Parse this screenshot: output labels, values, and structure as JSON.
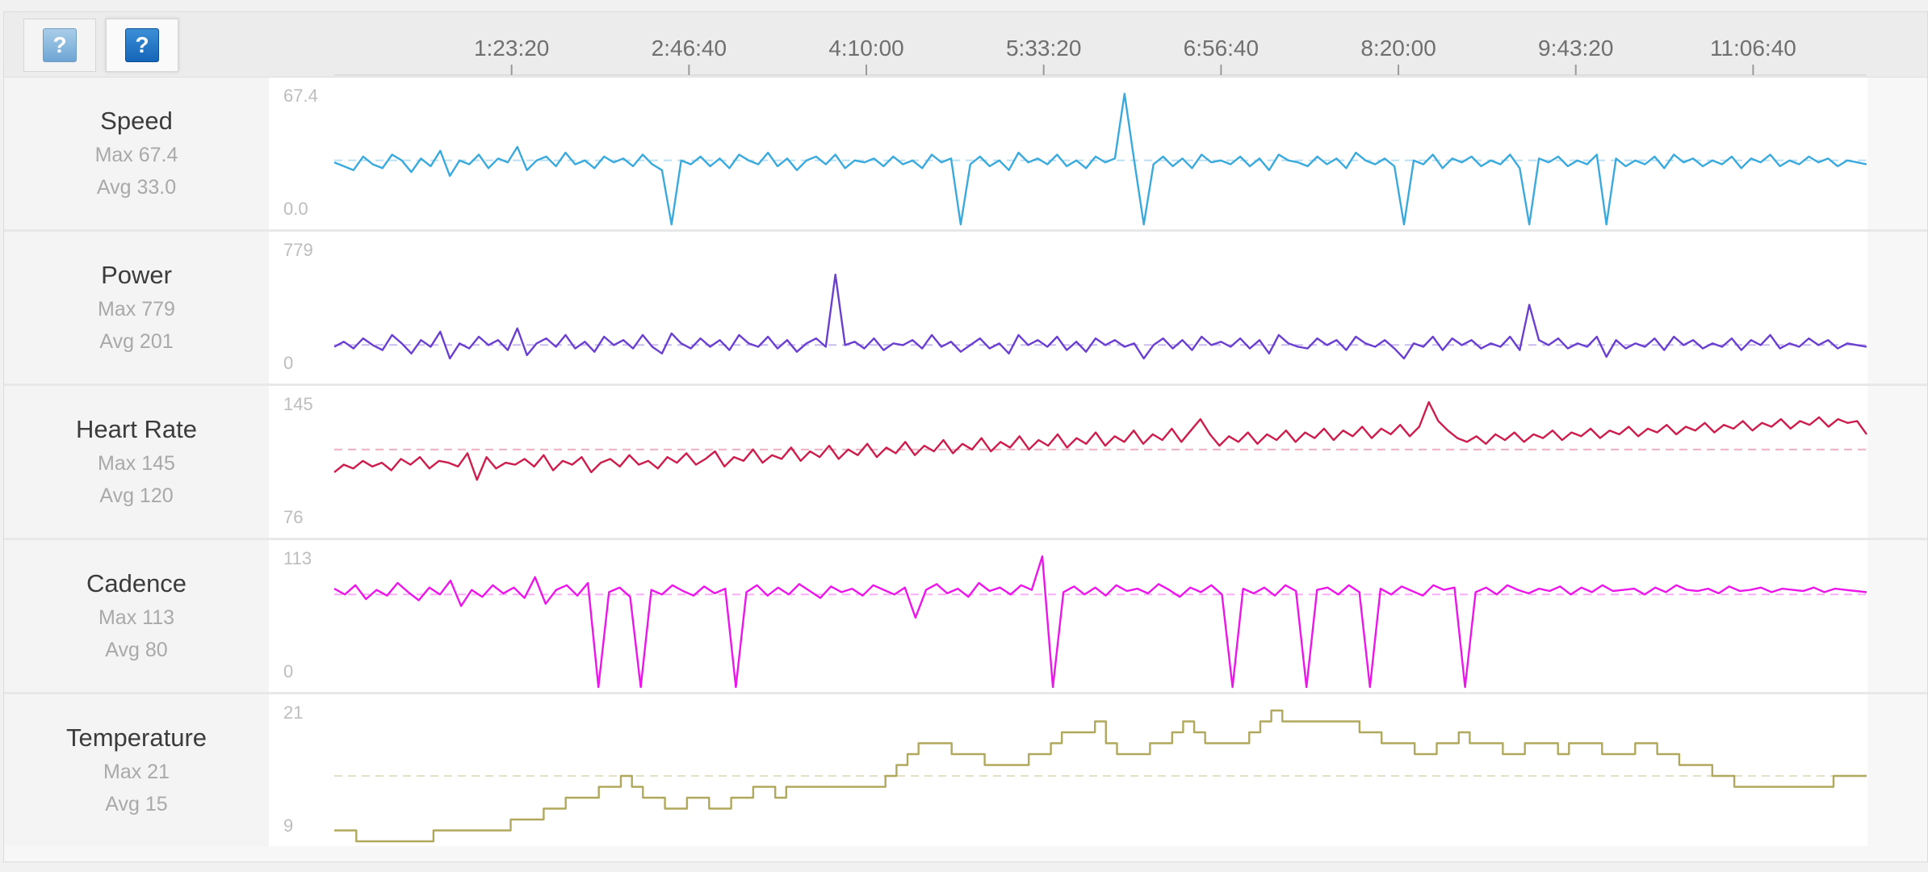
{
  "toolbar": {
    "buttons": [
      {
        "icon": "help-icon",
        "glyph": "?"
      },
      {
        "icon": "help-icon",
        "glyph": "?"
      }
    ]
  },
  "time_axis": {
    "ticks": [
      "1:23:20",
      "2:46:40",
      "4:10:00",
      "5:33:20",
      "6:56:40",
      "8:20:00",
      "9:43:20",
      "11:06:40"
    ]
  },
  "metrics": [
    {
      "title": "Speed",
      "max": "Max 67.4",
      "avg": "Avg 33.0",
      "y_top": "67.4",
      "y_bottom": "0.0"
    },
    {
      "title": "Power",
      "max": "Max 779",
      "avg": "Avg 201",
      "y_top": "779",
      "y_bottom": "0"
    },
    {
      "title": "Heart Rate",
      "max": "Max 145",
      "avg": "Avg 120",
      "y_top": "145",
      "y_bottom": "76"
    },
    {
      "title": "Cadence",
      "max": "Max 113",
      "avg": "Avg 80",
      "y_top": "113",
      "y_bottom": "0"
    },
    {
      "title": "Temperature",
      "max": "Max 21",
      "avg": "Avg 15",
      "y_top": "21",
      "y_bottom": "9"
    }
  ],
  "chart_data": {
    "type": "line",
    "x": {
      "unit": "elapsed time (h:mm:ss)",
      "tick_labels": [
        "1:23:20",
        "2:46:40",
        "4:10:00",
        "5:33:20",
        "6:56:40",
        "8:20:00",
        "9:43:20",
        "11:06:40"
      ],
      "tick_seconds": [
        5000,
        10000,
        15000,
        20000,
        25000,
        30000,
        35000,
        40000
      ],
      "xlim": [
        0,
        43200
      ]
    },
    "grid": false,
    "series": [
      {
        "name": "Speed",
        "color": "#3aa9dc",
        "ylim": [
          0,
          67.4
        ],
        "avg": 33.0,
        "max": 67.4,
        "values": [
          32,
          30,
          28,
          35,
          31,
          29,
          36,
          33,
          27,
          34,
          30,
          38,
          25,
          33,
          31,
          36,
          29,
          34,
          32,
          40,
          28,
          33,
          35,
          30,
          37,
          31,
          33,
          29,
          35,
          32,
          34,
          30,
          36,
          31,
          28,
          0,
          33,
          31,
          35,
          30,
          34,
          29,
          36,
          33,
          31,
          37,
          30,
          34,
          28,
          33,
          35,
          31,
          36,
          29,
          33,
          32,
          34,
          30,
          35,
          31,
          33,
          29,
          36,
          32,
          34,
          0,
          31,
          35,
          30,
          33,
          28,
          37,
          32,
          34,
          31,
          36,
          30,
          33,
          29,
          35,
          32,
          34,
          67.4,
          33,
          0,
          31,
          35,
          30,
          34,
          29,
          36,
          32,
          33,
          31,
          35,
          30,
          34,
          28,
          36,
          33,
          32,
          30,
          35,
          31,
          34,
          29,
          37,
          33,
          31,
          34,
          30,
          0,
          33,
          31,
          36,
          29,
          34,
          32,
          35,
          30,
          33,
          31,
          36,
          29,
          0,
          34,
          32,
          35,
          30,
          33,
          31,
          36,
          0,
          34,
          30,
          33,
          31,
          35,
          29,
          36,
          32,
          34,
          30,
          33,
          31,
          35,
          29,
          34,
          32,
          36,
          30,
          33,
          31,
          35,
          32,
          34,
          30,
          33,
          32,
          31
        ]
      },
      {
        "name": "Power",
        "color": "#6a3fd0",
        "ylim": [
          0,
          779
        ],
        "avg": 201,
        "max": 779,
        "values": [
          190,
          220,
          180,
          240,
          200,
          170,
          260,
          210,
          150,
          230,
          190,
          280,
          120,
          210,
          180,
          250,
          200,
          230,
          170,
          300,
          140,
          210,
          240,
          190,
          260,
          180,
          220,
          160,
          250,
          200,
          230,
          180,
          260,
          190,
          150,
          270,
          210,
          180,
          240,
          190,
          230,
          170,
          260,
          210,
          190,
          250,
          180,
          230,
          160,
          210,
          240,
          190,
          620,
          200,
          220,
          180,
          240,
          170,
          210,
          200,
          230,
          180,
          260,
          190,
          220,
          160,
          200,
          240,
          180,
          210,
          150,
          260,
          200,
          230,
          190,
          250,
          170,
          220,
          160,
          240,
          200,
          230,
          190,
          210,
          120,
          200,
          240,
          180,
          230,
          170,
          250,
          200,
          220,
          190,
          240,
          180,
          230,
          150,
          260,
          210,
          190,
          180,
          240,
          200,
          230,
          170,
          250,
          210,
          190,
          230,
          180,
          120,
          210,
          190,
          250,
          170,
          240,
          200,
          230,
          180,
          210,
          190,
          250,
          170,
          440,
          230,
          200,
          240,
          180,
          210,
          190,
          250,
          130,
          230,
          180,
          210,
          190,
          240,
          170,
          250,
          200,
          230,
          180,
          210,
          190,
          240,
          170,
          230,
          200,
          260,
          180,
          210,
          190,
          240,
          200,
          230,
          180,
          210,
          200,
          190
        ]
      },
      {
        "name": "Heart Rate",
        "color": "#cc1d4d",
        "ylim": [
          76,
          145
        ],
        "avg": 120,
        "max": 145,
        "values": [
          108,
          112,
          110,
          114,
          111,
          113,
          109,
          115,
          112,
          116,
          110,
          114,
          113,
          111,
          118,
          104,
          116,
          110,
          113,
          112,
          115,
          111,
          117,
          109,
          114,
          112,
          116,
          108,
          113,
          115,
          111,
          117,
          112,
          114,
          110,
          116,
          113,
          118,
          112,
          115,
          119,
          111,
          116,
          114,
          120,
          113,
          117,
          115,
          121,
          114,
          119,
          116,
          122,
          115,
          120,
          117,
          123,
          116,
          121,
          118,
          124,
          117,
          122,
          119,
          125,
          118,
          123,
          120,
          126,
          119,
          124,
          121,
          127,
          120,
          125,
          122,
          128,
          121,
          126,
          123,
          129,
          122,
          127,
          124,
          130,
          123,
          128,
          125,
          131,
          124,
          130,
          136,
          128,
          122,
          127,
          124,
          129,
          123,
          128,
          125,
          130,
          124,
          129,
          126,
          131,
          125,
          130,
          127,
          132,
          126,
          131,
          128,
          133,
          127,
          132,
          145,
          135,
          130,
          126,
          124,
          127,
          123,
          128,
          125,
          129,
          124,
          128,
          126,
          130,
          125,
          129,
          127,
          131,
          126,
          130,
          128,
          132,
          127,
          131,
          129,
          133,
          128,
          132,
          130,
          134,
          129,
          133,
          131,
          135,
          130,
          134,
          132,
          136,
          131,
          135,
          133,
          137,
          132,
          136,
          134,
          135,
          128
        ]
      },
      {
        "name": "Cadence",
        "color": "#ec16ea",
        "ylim": [
          0,
          113
        ],
        "avg": 80,
        "max": 113,
        "values": [
          85,
          80,
          88,
          76,
          84,
          79,
          90,
          82,
          75,
          86,
          80,
          92,
          70,
          84,
          78,
          88,
          81,
          86,
          77,
          95,
          72,
          84,
          88,
          79,
          90,
          0,
          82,
          86,
          78,
          0,
          84,
          80,
          88,
          83,
          79,
          87,
          81,
          85,
          0,
          82,
          88,
          79,
          86,
          80,
          89,
          83,
          77,
          87,
          82,
          85,
          79,
          88,
          84,
          80,
          86,
          60,
          84,
          89,
          81,
          85,
          78,
          90,
          83,
          86,
          80,
          88,
          84,
          113,
          0,
          82,
          87,
          80,
          86,
          79,
          88,
          83,
          85,
          81,
          89,
          84,
          78,
          86,
          82,
          88,
          80,
          0,
          85,
          81,
          86,
          79,
          88,
          83,
          0,
          84,
          86,
          80,
          88,
          82,
          0,
          85,
          80,
          87,
          83,
          79,
          88,
          84,
          86,
          0,
          82,
          86,
          80,
          88,
          84,
          81,
          85,
          83,
          87,
          80,
          86,
          82,
          88,
          83,
          84,
          85,
          80,
          86,
          82,
          88,
          84,
          83,
          85,
          81,
          87,
          83,
          84,
          86,
          82,
          85,
          84,
          83,
          86,
          82,
          85,
          84,
          83,
          82
        ]
      },
      {
        "name": "Temperature",
        "color": "#b0a85c",
        "ylim": [
          9,
          21
        ],
        "avg": 15,
        "max": 21,
        "values": [
          10,
          10,
          9,
          9,
          9,
          9,
          9,
          9,
          9,
          10,
          10,
          10,
          10,
          10,
          10,
          10,
          11,
          11,
          11,
          12,
          12,
          13,
          13,
          13,
          14,
          14,
          15,
          14,
          13,
          13,
          12,
          12,
          13,
          13,
          12,
          12,
          13,
          13,
          14,
          14,
          13,
          14,
          14,
          14,
          14,
          14,
          14,
          14,
          14,
          14,
          15,
          16,
          17,
          18,
          18,
          18,
          17,
          17,
          17,
          16,
          16,
          16,
          16,
          17,
          17,
          18,
          19,
          19,
          19,
          20,
          18,
          17,
          17,
          17,
          18,
          18,
          19,
          20,
          19,
          18,
          18,
          18,
          18,
          19,
          20,
          21,
          20,
          20,
          20,
          20,
          20,
          20,
          20,
          19,
          19,
          18,
          18,
          18,
          17,
          17,
          18,
          18,
          19,
          18,
          18,
          18,
          17,
          17,
          18,
          18,
          18,
          17,
          18,
          18,
          18,
          17,
          17,
          17,
          18,
          18,
          17,
          17,
          16,
          16,
          16,
          15,
          15,
          14,
          14,
          14,
          14,
          14,
          14,
          14,
          14,
          14,
          15,
          15,
          15
        ]
      }
    ]
  }
}
